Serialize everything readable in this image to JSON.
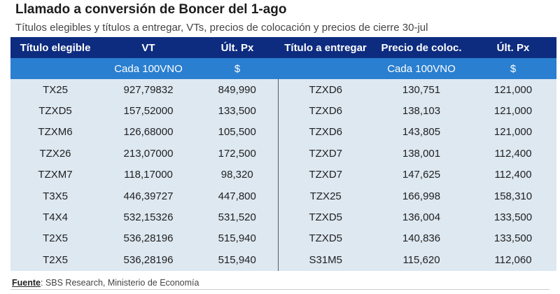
{
  "title": "Llamado a conversión de Boncer del 1-ago",
  "subtitle": "Títulos elegibles y títulos a entregar, VTs, precios de colocación y precios de cierre 30-jul",
  "table": {
    "headers": [
      "Título elegible",
      "VT",
      "Últ. Px",
      "Título a entregar",
      "Precio de coloc.",
      "Últ. Px"
    ],
    "subheaders": [
      "",
      "Cada 100VNO",
      "$",
      "",
      "Cada 100VNO",
      "$"
    ],
    "rows": [
      [
        "TX25",
        "927,79832",
        "849,990",
        "TZXD6",
        "130,751",
        "121,000"
      ],
      [
        "TZXD5",
        "157,52000",
        "133,500",
        "TZXD6",
        "138,103",
        "121,000"
      ],
      [
        "TZXM6",
        "126,68000",
        "105,500",
        "TZXD6",
        "143,805",
        "121,000"
      ],
      [
        "TZX26",
        "213,07000",
        "172,500",
        "TZXD7",
        "138,001",
        "112,400"
      ],
      [
        "TZXM7",
        "118,17000",
        "98,320",
        "TZXD7",
        "147,625",
        "112,400"
      ],
      [
        "T3X5",
        "446,39727",
        "447,800",
        "TZX25",
        "166,998",
        "158,310"
      ],
      [
        "T4X4",
        "532,15326",
        "531,520",
        "TZXD5",
        "136,004",
        "133,500"
      ],
      [
        "T2X5",
        "536,28196",
        "515,940",
        "TZXD5",
        "140,836",
        "133,500"
      ],
      [
        "T2X5",
        "536,28196",
        "515,940",
        "S31M5",
        "115,620",
        "112,060"
      ]
    ]
  },
  "source": {
    "label": "Fuente",
    "text": ": SBS Research, Ministerio de Economía"
  },
  "colors": {
    "header_dark": "#0d2c80",
    "header_light": "#2a7fd0",
    "row_bg": "#dde8f1"
  }
}
